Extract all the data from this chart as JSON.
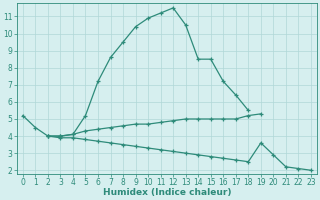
{
  "xlabel": "Humidex (Indice chaleur)",
  "x_values": [
    0,
    1,
    2,
    3,
    4,
    5,
    6,
    7,
    8,
    9,
    10,
    11,
    12,
    13,
    14,
    15,
    16,
    17,
    18,
    19,
    20,
    21,
    22,
    23
  ],
  "line1_y": [
    5.2,
    4.5,
    4.0,
    4.0,
    4.1,
    5.2,
    7.2,
    8.6,
    9.5,
    10.4,
    10.9,
    11.2,
    11.5,
    10.5,
    8.5,
    8.5,
    7.2,
    6.4,
    5.5,
    null,
    null,
    null,
    null,
    null
  ],
  "line2_y": [
    null,
    null,
    4.0,
    4.0,
    4.1,
    4.3,
    4.4,
    4.5,
    4.6,
    4.7,
    4.7,
    4.8,
    4.9,
    5.0,
    5.0,
    5.0,
    5.0,
    5.0,
    5.2,
    5.3,
    null,
    null,
    null,
    null
  ],
  "line3_y": [
    null,
    null,
    4.0,
    3.9,
    3.9,
    3.8,
    3.7,
    3.6,
    3.5,
    3.4,
    3.3,
    3.2,
    3.1,
    3.0,
    2.9,
    2.8,
    2.7,
    2.6,
    2.5,
    3.6,
    2.9,
    2.2,
    2.1,
    2.0
  ],
  "line_color": "#2e8b7a",
  "bg_color": "#d6efef",
  "grid_color": "#b0d8d8",
  "ylim": [
    1.8,
    11.8
  ],
  "xlim": [
    -0.5,
    23.5
  ],
  "yticks": [
    2,
    3,
    4,
    5,
    6,
    7,
    8,
    9,
    10,
    11
  ],
  "xticks": [
    0,
    1,
    2,
    3,
    4,
    5,
    6,
    7,
    8,
    9,
    10,
    11,
    12,
    13,
    14,
    15,
    16,
    17,
    18,
    19,
    20,
    21,
    22,
    23
  ],
  "tick_fontsize": 5.5,
  "xlabel_fontsize": 6.5
}
